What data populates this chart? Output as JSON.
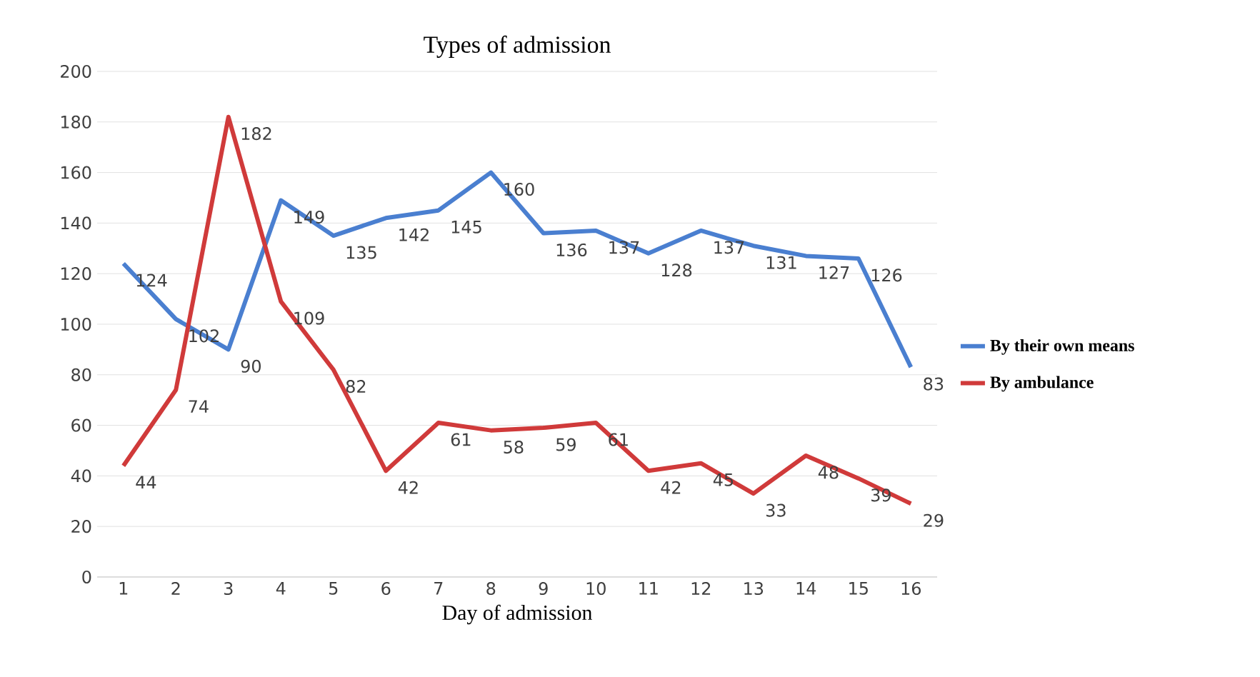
{
  "chart_data": {
    "type": "line",
    "title": "Types of admission",
    "xlabel": "Day of admission",
    "x": [
      1,
      2,
      3,
      4,
      5,
      6,
      7,
      8,
      9,
      10,
      11,
      12,
      13,
      14,
      15,
      16
    ],
    "series": [
      {
        "name": "By their own means",
        "color": "#4a7fd0",
        "values": [
          124,
          102,
          90,
          149,
          135,
          142,
          145,
          160,
          136,
          137,
          128,
          137,
          131,
          127,
          126,
          83
        ]
      },
      {
        "name": "By ambulance",
        "color": "#d03a3a",
        "values": [
          44,
          74,
          182,
          109,
          82,
          42,
          61,
          58,
          59,
          61,
          42,
          45,
          33,
          48,
          39,
          29
        ]
      }
    ],
    "xlim": [
      0.5,
      16.5
    ],
    "xticks": [
      1,
      2,
      3,
      4,
      5,
      6,
      7,
      8,
      9,
      10,
      11,
      12,
      13,
      14,
      15,
      16
    ],
    "ylim": [
      0,
      200
    ],
    "yticks": [
      0,
      20,
      40,
      60,
      80,
      100,
      120,
      140,
      160,
      180,
      200
    ],
    "grid": "y",
    "legend": "right",
    "marker": "none",
    "line_style": "solid",
    "data_labels": true
  }
}
